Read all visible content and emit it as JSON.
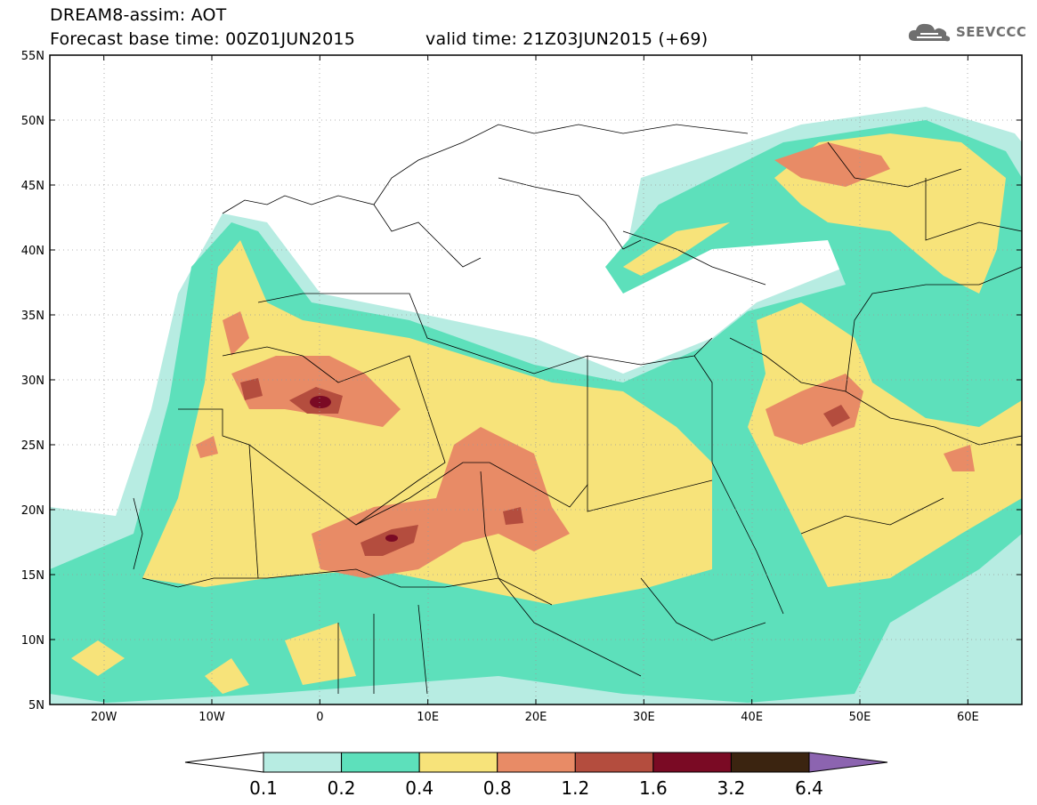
{
  "title": {
    "line1": "DREAM8-assim: AOT",
    "line2": "Forecast base time: 00Z01JUN2015",
    "valid": "valid time: 21Z03JUN2015 (+69)"
  },
  "logo": {
    "text": "SEEVCCC",
    "icon": "cloud-icon"
  },
  "axes": {
    "lat_labels": [
      "55N",
      "50N",
      "45N",
      "40N",
      "35N",
      "30N",
      "25N",
      "20N",
      "15N",
      "10N",
      "5N"
    ],
    "lon_labels": [
      "20W",
      "10W",
      "0",
      "10E",
      "20E",
      "30E",
      "40E",
      "50E",
      "60E"
    ],
    "lat_range": [
      5,
      55
    ],
    "lon_range": [
      -25,
      65
    ]
  },
  "colorbar": {
    "labels": [
      "0.1",
      "0.2",
      "0.4",
      "0.8",
      "1.2",
      "1.6",
      "3.2",
      "6.4"
    ],
    "colors": [
      "#ffffff",
      "#b7ece2",
      "#5de0bb",
      "#f7e37a",
      "#e88b66",
      "#b44d3e",
      "#7a0a24",
      "#3b2410",
      "#8c64b0"
    ]
  },
  "colors": {
    "c01": "#b7ece2",
    "c02": "#5de0bb",
    "c04": "#f7e37a",
    "c08": "#e88b66",
    "c12": "#b44d3e",
    "c16": "#7a0a24"
  }
}
